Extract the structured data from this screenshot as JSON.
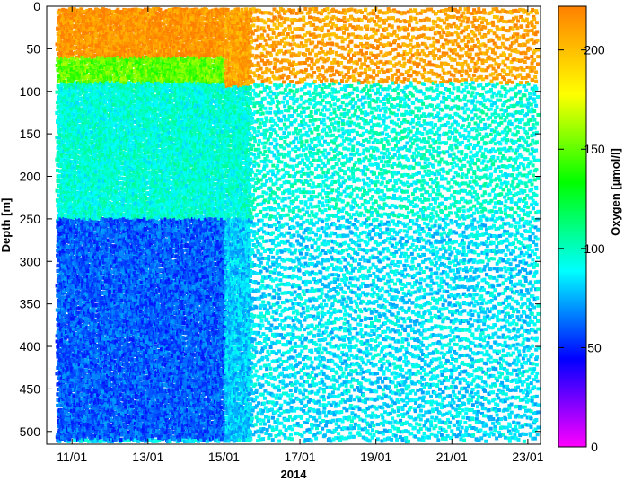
{
  "chart_data": {
    "type": "heatmap",
    "xlabel": "2014",
    "ylabel": "Depth [m]",
    "x_start": "2014-01-10",
    "x_end": "2014-01-23",
    "xlim": [
      "2014-01-10T08:00",
      "2014-01-23T08:00"
    ],
    "x_ticks": [
      {
        "date": "2014-01-11",
        "label": "11/01"
      },
      {
        "date": "2014-01-13",
        "label": "13/01"
      },
      {
        "date": "2014-01-15",
        "label": "15/01"
      },
      {
        "date": "2014-01-17",
        "label": "17/01"
      },
      {
        "date": "2014-01-19",
        "label": "19/01"
      },
      {
        "date": "2014-01-21",
        "label": "21/01"
      },
      {
        "date": "2014-01-23",
        "label": "23/01"
      }
    ],
    "ylim": [
      515,
      0
    ],
    "y_ticks": [
      0,
      50,
      100,
      150,
      200,
      250,
      300,
      350,
      400,
      450,
      500
    ],
    "colorbar": {
      "label": "Oxygen [µmol/l]",
      "range": [
        0,
        222
      ],
      "ticks": [
        0,
        50,
        100,
        150,
        200
      ],
      "colormap": [
        "#ff00ff",
        "#0000ff",
        "#00ffff",
        "#00ff00",
        "#ffff00",
        "#ff8000"
      ]
    },
    "profile_summary": [
      {
        "depth_range": [
          0,
          60
        ],
        "period": "2014-01-10 to 2014-01-15",
        "oxygen": 215
      },
      {
        "depth_range": [
          60,
          90
        ],
        "period": "2014-01-10 to 2014-01-15",
        "oxygen": 150
      },
      {
        "depth_range": [
          90,
          250
        ],
        "period": "whole record",
        "oxygen": 95
      },
      {
        "depth_range": [
          250,
          510
        ],
        "period": "2014-01-10 to 2014-01-15",
        "oxygen": 60
      },
      {
        "depth_range": [
          250,
          510
        ],
        "period": "2014-01-15 to 2014-01-23",
        "oxygen": 80
      },
      {
        "depth_range": [
          0,
          95
        ],
        "period": "2014-01-15 to 2014-01-23",
        "oxygen": 210
      }
    ]
  }
}
